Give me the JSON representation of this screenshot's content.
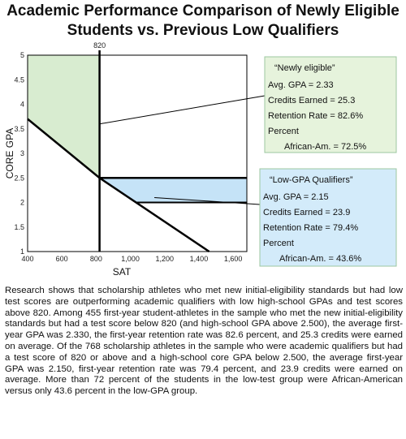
{
  "title_line1": "Academic Performance Comparison of Newly Eligible",
  "title_line2": "Students vs. Previous Low Qualifiers",
  "chart_data": {
    "type": "line",
    "xlabel": "SAT",
    "ylabel": "CORE GPA",
    "xlim": [
      400,
      1680
    ],
    "ylim": [
      1,
      5
    ],
    "x_ticks": [
      {
        "value": 400,
        "label": "400"
      },
      {
        "value": 600,
        "label": "600"
      },
      {
        "value": 800,
        "label": "800"
      },
      {
        "value": 1000,
        "label": "1,000"
      },
      {
        "value": 1200,
        "label": "1,200"
      },
      {
        "value": 1400,
        "label": "1,400"
      },
      {
        "value": 1600,
        "label": "1,600"
      }
    ],
    "y_ticks": [
      {
        "value": 1,
        "label": "1"
      },
      {
        "value": 1.5,
        "label": "1.5"
      },
      {
        "value": 2,
        "label": "2"
      },
      {
        "value": 2.5,
        "label": "2.5"
      },
      {
        "value": 3,
        "label": "3"
      },
      {
        "value": 3.5,
        "label": "3.5"
      },
      {
        "value": 4,
        "label": "4"
      },
      {
        "value": 4.5,
        "label": "4.5"
      },
      {
        "value": 5,
        "label": "5"
      }
    ],
    "top_marker_label": "820",
    "cutoff_sat": 820,
    "sliding_scale": [
      [
        400,
        3.7
      ],
      [
        820,
        2.5
      ],
      [
        1460,
        1.0
      ]
    ],
    "grid": false,
    "colors": {
      "newly_eligible_region": "#d8ecd0",
      "low_gpa_region": "#c5e3f7",
      "line": "#000000"
    },
    "annotations": [
      {
        "name": "newly-eligible",
        "title": "“Newly eligible”",
        "lines": [
          "Avg. GPA = 2.33",
          "Credits Earned = 25.3",
          "Retention Rate = 82.6%",
          "Percent",
          "African-Am. = 72.5%"
        ],
        "box_color": "#e6f3dc",
        "pointer_to": [
          820,
          3.6
        ]
      },
      {
        "name": "low-gpa-qualifiers",
        "title": "“Low-GPA Qualifiers”",
        "lines": [
          "Avg. GPA = 2.15",
          "Credits Earned = 23.9",
          "Retention Rate = 79.4%",
          "Percent",
          "African-Am. = 43.6%"
        ],
        "box_color": "#d3ebfa",
        "pointer_to": [
          1140,
          2.1
        ]
      }
    ]
  },
  "caption": "Research shows that scholarship athletes who met new initial-eligibility standards but had low test scores are outperforming academic qualifiers with low high-school GPAs and test scores above 820. Among 455 first-year student-athletes in the sample who met the new initial-eligibility standards but had a test score below 820 (and high-school GPA above 2.500), the average first-year GPA was 2.330, the first-year retention rate was 82.6 percent, and 25.3 credits were earned on average. Of the 768 scholarship athletes in the sample who were academic qualifiers but had a test score of 820 or above and a high-school core GPA below 2.500, the average first-year GPA was 2.150, first-year retention rate was 79.4 percent, and 23.9 credits were earned on average. More than 72 percent of the students in the low-test group were African-American versus only 43.6 percent in the low-GPA group."
}
